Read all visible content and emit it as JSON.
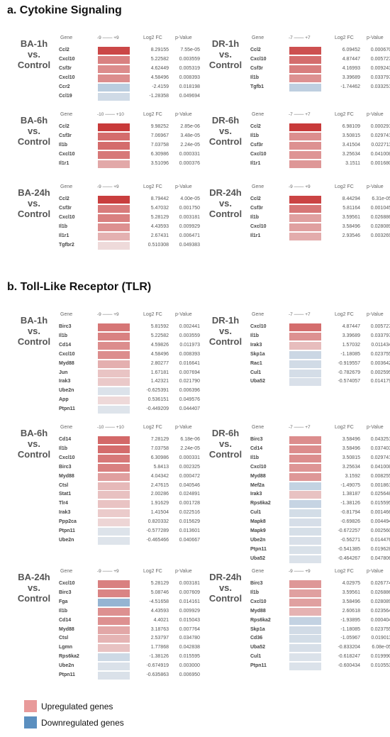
{
  "sections": [
    {
      "title": "a.   Cytokine Signaling"
    },
    {
      "title": "b.   Toll-Like Receptor (TLR)"
    }
  ],
  "column_headers": {
    "gene": "Gene",
    "fc": "Log2 FC",
    "p": "p-Value"
  },
  "colors": {
    "up_max": "#c83a3a",
    "down_max": "#5b8fbf",
    "neutral": "#f4f2f2"
  },
  "legend": [
    {
      "label": "Upregulated genes",
      "color": "#e89a9a"
    },
    {
      "label": "Downregulated genes",
      "color": "#5b8fbf"
    }
  ],
  "chart_data": [
    {
      "type": "heatmap",
      "section": 0,
      "label": "BA-1h vs. Control",
      "scale": [
        -9,
        9
      ],
      "scale_label": "-9 ─── +9",
      "rows": [
        {
          "gene": "Ccl2",
          "fc": 8.29155,
          "p": "7.55e-05"
        },
        {
          "gene": "Cxcl10",
          "fc": 5.22582,
          "p": "0.003559"
        },
        {
          "gene": "Csf3r",
          "fc": 4.62449,
          "p": "0.005319"
        },
        {
          "gene": "Cxcl10",
          "fc": 4.58496,
          "p": "0.008393"
        },
        {
          "gene": "Ccr2",
          "fc": -2.4159,
          "p": "0.018198"
        },
        {
          "gene": "Ccl19",
          "fc": -1.28358,
          "p": "0.049694"
        }
      ]
    },
    {
      "type": "heatmap",
      "section": 0,
      "label": "DR-1h vs. Control",
      "scale": [
        -7,
        7
      ],
      "scale_label": "-7 ─── +7",
      "rows": [
        {
          "gene": "Ccl2",
          "fc": 6.09452,
          "p": "0.000670"
        },
        {
          "gene": "Cxcl10",
          "fc": 4.87447,
          "p": "0.005727"
        },
        {
          "gene": "Csf3r",
          "fc": 4.16993,
          "p": "0.009243"
        },
        {
          "gene": "Il1b",
          "fc": 3.39689,
          "p": "0.033797"
        },
        {
          "gene": "Tgfb1",
          "fc": -1.74462,
          "p": "0.033251"
        }
      ]
    },
    {
      "type": "heatmap",
      "section": 0,
      "label": "BA-6h vs. Control",
      "scale": [
        -10,
        10
      ],
      "scale_label": "-10 ─── +10",
      "rows": [
        {
          "gene": "Ccl2",
          "fc": 9.98252,
          "p": "2.85e-06"
        },
        {
          "gene": "Csf3r",
          "fc": 7.06967,
          "p": "3.48e-05"
        },
        {
          "gene": "Il1b",
          "fc": 7.03758,
          "p": "2.24e-05"
        },
        {
          "gene": "Cxcl10",
          "fc": 6.30986,
          "p": "0.000331"
        },
        {
          "gene": "Il1r1",
          "fc": 3.51096,
          "p": "0.000376"
        }
      ]
    },
    {
      "type": "heatmap",
      "section": 0,
      "label": "DR-6h vs. Control",
      "scale": [
        -7,
        7
      ],
      "scale_label": "-7 ─── +7",
      "rows": [
        {
          "gene": "Ccl2",
          "fc": 6.98109,
          "p": "0.000291"
        },
        {
          "gene": "Il1b",
          "fc": 3.50815,
          "p": "0.029741"
        },
        {
          "gene": "Csf3r",
          "fc": 3.41504,
          "p": "0.022711"
        },
        {
          "gene": "Cxcl10",
          "fc": 3.25634,
          "p": "0.041008"
        },
        {
          "gene": "Il1r1",
          "fc": 3.1511,
          "p": "0.001680"
        }
      ]
    },
    {
      "type": "heatmap",
      "section": 0,
      "label": "BA-24h vs. Control",
      "scale": [
        -9,
        9
      ],
      "scale_label": "-9 ─── +9",
      "rows": [
        {
          "gene": "Ccl2",
          "fc": 8.79442,
          "p": "4.00e-05"
        },
        {
          "gene": "Csf3r",
          "fc": 5.47032,
          "p": "0.001750"
        },
        {
          "gene": "Cxcl10",
          "fc": 5.28129,
          "p": "0.003181"
        },
        {
          "gene": "Il1b",
          "fc": 4.43593,
          "p": "0.009929"
        },
        {
          "gene": "Il1r1",
          "fc": 2.67431,
          "p": "0.006471"
        },
        {
          "gene": "Tgfbr2",
          "fc": 0.510308,
          "p": "0.049383"
        }
      ]
    },
    {
      "type": "heatmap",
      "section": 0,
      "label": "DR-24h vs. Control",
      "scale": [
        -9,
        9
      ],
      "scale_label": "-9 ─── +9",
      "rows": [
        {
          "gene": "Ccl2",
          "fc": 8.44294,
          "p": "6.31e-05"
        },
        {
          "gene": "Csf3r",
          "fc": 5.81164,
          "p": "0.001045"
        },
        {
          "gene": "Il1b",
          "fc": 3.59561,
          "p": "0.026886"
        },
        {
          "gene": "Cxcl10",
          "fc": 3.58496,
          "p": "0.028089"
        },
        {
          "gene": "Il1r1",
          "fc": 2.93546,
          "p": "0.003269"
        }
      ]
    },
    {
      "type": "heatmap",
      "section": 1,
      "label": "BA-1h vs. Control",
      "scale": [
        -9,
        9
      ],
      "scale_label": "-9 ─── +9",
      "rows": [
        {
          "gene": "Birc3",
          "fc": 5.81592,
          "p": "0.002441"
        },
        {
          "gene": "Il1b",
          "fc": 5.22582,
          "p": "0.003559"
        },
        {
          "gene": "Cd14",
          "fc": 4.59826,
          "p": "0.011973"
        },
        {
          "gene": "Cxcl10",
          "fc": 4.58496,
          "p": "0.008393"
        },
        {
          "gene": "Myd88",
          "fc": 2.80277,
          "p": "0.016641"
        },
        {
          "gene": "Jun",
          "fc": 1.67181,
          "p": "0.007694"
        },
        {
          "gene": "Irak3",
          "fc": 1.42321,
          "p": "0.021790"
        },
        {
          "gene": "Ube2n",
          "fc": -0.625391,
          "p": "0.006396"
        },
        {
          "gene": "App",
          "fc": 0.536151,
          "p": "0.049576"
        },
        {
          "gene": "Ptpn11",
          "fc": -0.449209,
          "p": "0.044407"
        }
      ]
    },
    {
      "type": "heatmap",
      "section": 1,
      "label": "DR-1h vs. Control",
      "scale": [
        -7,
        7
      ],
      "scale_label": "-7 ─── +7",
      "rows": [
        {
          "gene": "Cxcl10",
          "fc": 4.87447,
          "p": "0.005727"
        },
        {
          "gene": "Il1b",
          "fc": 3.39689,
          "p": "0.033797"
        },
        {
          "gene": "Irak3",
          "fc": 1.57032,
          "p": "0.011434"
        },
        {
          "gene": "Skp1a",
          "fc": -1.18085,
          "p": "0.023755"
        },
        {
          "gene": "Rac1",
          "fc": -0.919557,
          "p": "0.003642"
        },
        {
          "gene": "Cul1",
          "fc": -0.782679,
          "p": "0.002595"
        },
        {
          "gene": "Uba52",
          "fc": -0.574057,
          "p": "0.014179"
        }
      ]
    },
    {
      "type": "heatmap",
      "section": 1,
      "label": "BA-6h vs. Control",
      "scale": [
        -10,
        10
      ],
      "scale_label": "-10 ─── +10",
      "rows": [
        {
          "gene": "Cd14",
          "fc": 7.28129,
          "p": "6.18e-06"
        },
        {
          "gene": "Il1b",
          "fc": 7.03758,
          "p": "2.24e-05"
        },
        {
          "gene": "Cxcl10",
          "fc": 6.30986,
          "p": "0.000331"
        },
        {
          "gene": "Birc3",
          "fc": 5.8413,
          "p": "0.002325"
        },
        {
          "gene": "Myd88",
          "fc": 4.04342,
          "p": "0.000472"
        },
        {
          "gene": "Ctsl",
          "fc": 2.47615,
          "p": "0.040546"
        },
        {
          "gene": "Stat1",
          "fc": 2.00286,
          "p": "0.024891"
        },
        {
          "gene": "Tlr4",
          "fc": 1.91629,
          "p": "0.001728"
        },
        {
          "gene": "Irak3",
          "fc": 1.41504,
          "p": "0.022516"
        },
        {
          "gene": "Ppp2ca",
          "fc": 0.820332,
          "p": "0.015629"
        },
        {
          "gene": "Ptpn11",
          "fc": -0.577289,
          "p": "0.013601"
        },
        {
          "gene": "Ube2n",
          "fc": -0.465466,
          "p": "0.040667"
        }
      ]
    },
    {
      "type": "heatmap",
      "section": 1,
      "label": "DR-6h vs. Control",
      "scale": [
        -7,
        7
      ],
      "scale_label": "-7 ─── +7",
      "rows": [
        {
          "gene": "Birc3",
          "fc": 3.58496,
          "p": "0.043251"
        },
        {
          "gene": "Cd14",
          "fc": 3.58496,
          "p": "0.037403"
        },
        {
          "gene": "Il1b",
          "fc": 3.50815,
          "p": "0.029741"
        },
        {
          "gene": "Cxcl10",
          "fc": 3.25634,
          "p": "0.041008"
        },
        {
          "gene": "Myd88",
          "fc": 3.1592,
          "p": "0.008255"
        },
        {
          "gene": "Mef2a",
          "fc": -1.49075,
          "p": "0.001861"
        },
        {
          "gene": "Irak3",
          "fc": 1.38187,
          "p": "0.025648"
        },
        {
          "gene": "Rps6ka2",
          "fc": -1.38126,
          "p": "0.015595"
        },
        {
          "gene": "Cul1",
          "fc": -0.81794,
          "p": "0.001466"
        },
        {
          "gene": "Mapk8",
          "fc": -0.69826,
          "p": "0.004494"
        },
        {
          "gene": "Mapk9",
          "fc": -0.672257,
          "p": "0.002560"
        },
        {
          "gene": "Ube2n",
          "fc": -0.56271,
          "p": "0.014476"
        },
        {
          "gene": "Ptpn11",
          "fc": -0.541385,
          "p": "0.019628"
        },
        {
          "gene": "Uba52",
          "fc": -0.464267,
          "p": "0.047806"
        }
      ]
    },
    {
      "type": "heatmap",
      "section": 1,
      "label": "BA-24h vs. Control",
      "scale": [
        -9,
        9
      ],
      "scale_label": "-9 ─── +9",
      "rows": [
        {
          "gene": "Cxcl10",
          "fc": 5.28129,
          "p": "0.003181"
        },
        {
          "gene": "Birc3",
          "fc": 5.08746,
          "p": "0.007609"
        },
        {
          "gene": "Fga",
          "fc": -4.51658,
          "p": "0.014161"
        },
        {
          "gene": "Il1b",
          "fc": 4.43593,
          "p": "0.009929"
        },
        {
          "gene": "Cd14",
          "fc": 4.4021,
          "p": "0.015043"
        },
        {
          "gene": "Myd88",
          "fc": 3.18763,
          "p": "0.007764"
        },
        {
          "gene": "Ctsl",
          "fc": 2.53797,
          "p": "0.034780"
        },
        {
          "gene": "Lgmn",
          "fc": 1.77868,
          "p": "0.042838"
        },
        {
          "gene": "Rps6ka2",
          "fc": -1.38126,
          "p": "0.015595"
        },
        {
          "gene": "Ube2n",
          "fc": -0.674919,
          "p": "0.003000"
        },
        {
          "gene": "Ptpn11",
          "fc": -0.635863,
          "p": "0.006950"
        }
      ]
    },
    {
      "type": "heatmap",
      "section": 1,
      "label": "DR-24h vs. Control",
      "scale": [
        -9,
        9
      ],
      "scale_label": "-9 ─── +9",
      "rows": [
        {
          "gene": "Birc3",
          "fc": 4.02975,
          "p": "0.026774"
        },
        {
          "gene": "Il1b",
          "fc": 3.59561,
          "p": "0.026886"
        },
        {
          "gene": "Cxcl10",
          "fc": 3.58496,
          "p": "0.028089"
        },
        {
          "gene": "Myd88",
          "fc": 2.60618,
          "p": "0.023564"
        },
        {
          "gene": "Rps6ka2",
          "fc": -1.93895,
          "p": "0.000404"
        },
        {
          "gene": "Skp1a",
          "fc": -1.18085,
          "p": "0.023755"
        },
        {
          "gene": "Cd36",
          "fc": -1.05967,
          "p": "0.019011"
        },
        {
          "gene": "Uba52",
          "fc": -0.833204,
          "p": "6.08e-05"
        },
        {
          "gene": "Cul1",
          "fc": -0.618247,
          "p": "0.019990"
        },
        {
          "gene": "Ptpn11",
          "fc": -0.600434,
          "p": "0.010553"
        }
      ]
    }
  ]
}
